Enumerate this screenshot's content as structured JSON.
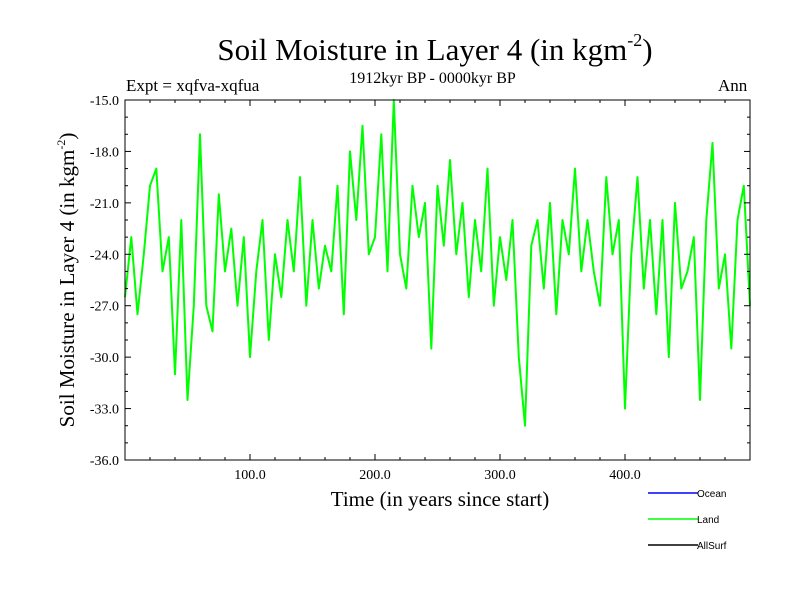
{
  "chart_data": {
    "type": "line",
    "title_main": "Soil Moisture in Layer 4 (in kgm",
    "title_exp": "-2",
    "title_end": ")",
    "expt_label": "Expt = xqfva-xqfua",
    "period_label": "1912kyr BP - 0000kyr BP",
    "season_label": "Ann",
    "xlabel": "Time (in years since start)",
    "ylabel_main": "Soil Moisture in Layer 4 (in kgm",
    "ylabel_exp": "-2",
    "ylabel_end": ")",
    "xlim": [
      0,
      500
    ],
    "ylim": [
      -36.0,
      -15.0
    ],
    "xticks": [
      100,
      200,
      300,
      400
    ],
    "xtick_labels": [
      "100.0",
      "200.0",
      "300.0",
      "400.0"
    ],
    "yticks": [
      -36,
      -33,
      -30,
      -27,
      -24,
      -21,
      -18,
      -15
    ],
    "ytick_labels": [
      "-36.0",
      "-33.0",
      "-30.0",
      "-27.0",
      "-24.0",
      "-21.0",
      "-18.0",
      "-15.0"
    ],
    "legend": [
      {
        "name": "Ocean",
        "color": "#0000ff"
      },
      {
        "name": "Land",
        "color": "#00ff00"
      },
      {
        "name": "AllSurf",
        "color": "#000000"
      }
    ],
    "series": [
      {
        "name": "Land",
        "color": "#00ff00",
        "x": [
          0,
          5,
          10,
          15,
          20,
          25,
          30,
          35,
          40,
          45,
          50,
          55,
          60,
          65,
          70,
          75,
          80,
          85,
          90,
          95,
          100,
          105,
          110,
          115,
          120,
          125,
          130,
          135,
          140,
          145,
          150,
          155,
          160,
          165,
          170,
          175,
          180,
          185,
          190,
          195,
          200,
          205,
          210,
          215,
          220,
          225,
          230,
          235,
          240,
          245,
          250,
          255,
          260,
          265,
          270,
          275,
          280,
          285,
          290,
          295,
          300,
          305,
          310,
          315,
          320,
          325,
          330,
          335,
          340,
          345,
          350,
          355,
          360,
          365,
          370,
          375,
          380,
          385,
          390,
          395,
          400,
          405,
          410,
          415,
          420,
          425,
          430,
          435,
          440,
          445,
          450,
          455,
          460,
          465,
          470,
          475,
          480,
          485,
          490,
          495,
          500
        ],
        "values": [
          -26.5,
          -23.0,
          -27.5,
          -24.0,
          -20.0,
          -19.0,
          -25.0,
          -23.0,
          -31.0,
          -22.0,
          -32.5,
          -27.0,
          -17.0,
          -27.0,
          -28.5,
          -20.5,
          -25.0,
          -22.5,
          -27.0,
          -23.0,
          -30.0,
          -25.0,
          -22.0,
          -29.0,
          -24.0,
          -26.5,
          -22.0,
          -25.0,
          -19.5,
          -27.0,
          -22.0,
          -26.0,
          -23.5,
          -25.0,
          -20.0,
          -27.5,
          -18.0,
          -22.0,
          -16.5,
          -24.0,
          -23.0,
          -17.0,
          -25.0,
          -15.0,
          -24.0,
          -26.0,
          -20.0,
          -23.0,
          -21.0,
          -29.5,
          -20.0,
          -23.5,
          -18.5,
          -24.0,
          -21.0,
          -26.5,
          -22.0,
          -25.0,
          -19.0,
          -27.0,
          -23.0,
          -25.5,
          -22.0,
          -30.0,
          -34.0,
          -23.5,
          -22.0,
          -26.0,
          -21.0,
          -27.5,
          -22.0,
          -24.0,
          -19.0,
          -25.0,
          -22.0,
          -25.0,
          -27.0,
          -19.5,
          -24.0,
          -22.0,
          -33.0,
          -24.0,
          -19.5,
          -26.0,
          -22.0,
          -27.5,
          -22.0,
          -30.0,
          -21.0,
          -26.0,
          -25.0,
          -23.0,
          -32.5,
          -22.0,
          -17.5,
          -26.0,
          -24.0,
          -29.5,
          -22.0,
          -20.0,
          -27.0
        ]
      }
    ]
  }
}
